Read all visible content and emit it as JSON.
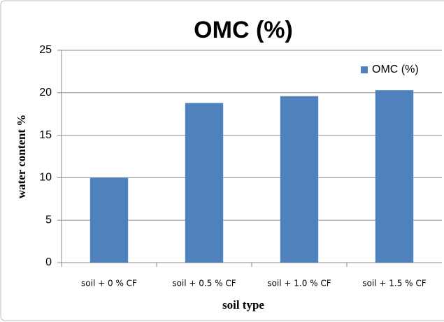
{
  "chart_data": {
    "type": "bar",
    "title": "OMC (%)",
    "x_label": "soil type",
    "y_label": "water content %",
    "categories": [
      "soil + 0 % CF",
      "soil + 0.5 % CF",
      "soil + 1.0 % CF",
      "soil + 1.5 % CF"
    ],
    "series": [
      {
        "name": "OMC (%)",
        "color": "#4f81bd",
        "values": [
          10,
          18.8,
          19.6,
          20.3
        ]
      }
    ],
    "ylim": [
      0,
      25
    ],
    "yticks": [
      0,
      5,
      10,
      15,
      20,
      25
    ],
    "grid": true,
    "legend": "top-right"
  }
}
